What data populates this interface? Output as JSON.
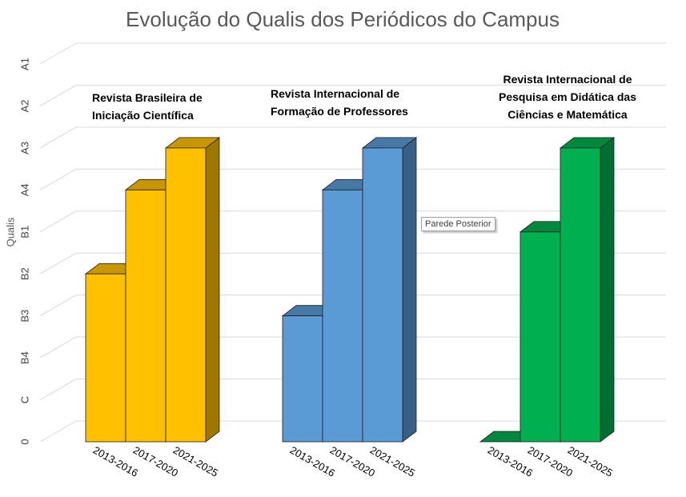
{
  "chart_data": {
    "type": "bar3d",
    "title": "Evolução do Qualis dos Periódicos do Campus",
    "y_label": "Qualis",
    "categories": [
      "2013-2016",
      "2017-2020",
      "2021-2025"
    ],
    "series": [
      {
        "name": "Revista Brasileira de Iniciação Científica",
        "color": "#FFC000",
        "values": [
          4,
          6,
          7
        ]
      },
      {
        "name": "Revista Internacional de Formação de Professores",
        "color": "#5B9BD5",
        "values": [
          3,
          6,
          7
        ]
      },
      {
        "name": "Revista Internacional de Pesquisa em Didática das Ciências e Matemática",
        "color": "#00B050",
        "values": [
          0,
          5,
          7
        ]
      }
    ],
    "ylim": [
      0,
      9
    ],
    "yticks": [
      0,
      {
        "value": 1,
        "label": "C"
      },
      {
        "value": 2,
        "label": "B4"
      },
      {
        "value": 3,
        "label": "B3"
      },
      {
        "value": 4,
        "label": "B2"
      },
      {
        "value": 5,
        "label": "B1"
      },
      {
        "value": 6,
        "label": "A4"
      },
      {
        "value": 7,
        "label": "A3"
      },
      {
        "value": 8,
        "label": "A2"
      },
      {
        "value": 9,
        "label": "A1"
      }
    ],
    "grid": true,
    "tooltip": "Parede Posterior"
  }
}
